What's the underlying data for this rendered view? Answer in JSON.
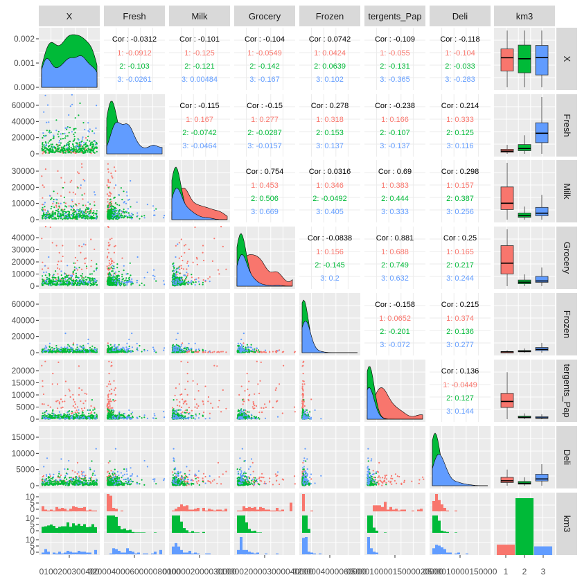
{
  "chart_data": {
    "type": "scatterplot-matrix",
    "variables": [
      "X",
      "Fresh",
      "Milk",
      "Grocery",
      "Frozen",
      "Detergents_Paper",
      "Deli",
      "km3"
    ],
    "strip_labels": [
      "X",
      "Fresh",
      "Milk",
      "Grocery",
      "Frozen",
      "tergents_Pap",
      "Deli",
      "km3"
    ],
    "groups": [
      "1",
      "2",
      "3"
    ],
    "group_colors": {
      "1": "#F8766D",
      "2": "#00BA38",
      "3": "#619CFF"
    },
    "ranges": [
      [
        1,
        440
      ],
      [
        0,
        112151
      ],
      [
        0,
        73498
      ],
      [
        0,
        92780
      ],
      [
        0,
        60869
      ],
      [
        0,
        40827
      ],
      [
        0,
        47943
      ]
    ],
    "left_axis_ticks": [
      [
        "0.000",
        "0.001",
        "0.002"
      ],
      [
        "0",
        "20000",
        "40000",
        "60000"
      ],
      [
        "0",
        "10000",
        "20000",
        "30000"
      ],
      [
        "0",
        "10000",
        "20000",
        "30000",
        "40000"
      ],
      [
        "0",
        "20000",
        "40000",
        "60000"
      ],
      [
        "0",
        "5000",
        "10000",
        "15000",
        "20000"
      ],
      [
        "0",
        "5000",
        "10000",
        "15000"
      ],
      [
        "0",
        "5",
        "10",
        "0",
        "5",
        "10",
        "0",
        "5",
        "10"
      ]
    ],
    "bottom_axis_ticks": [
      "0100200300400",
      "02000400060000080000",
      "0100002000030000",
      "010000200003000040000",
      "0200004000060000",
      "050001000015000020000",
      "0500010000150000",
      "1",
      "2",
      "3"
    ],
    "correlations": [
      {
        "row": 0,
        "col": 1,
        "total": "Cor : -0.0312",
        "g": [
          "1: -0.0912",
          "2: -0.103",
          "3: -0.0261"
        ]
      },
      {
        "row": 0,
        "col": 2,
        "total": "Cor : -0.101",
        "g": [
          "1: -0.125",
          "2: -0.121",
          "3: 0.00484"
        ]
      },
      {
        "row": 0,
        "col": 3,
        "total": "Cor : -0.104",
        "g": [
          "1: -0.0549",
          "2: -0.142",
          "3: -0.167"
        ]
      },
      {
        "row": 0,
        "col": 4,
        "total": "Cor : 0.0742",
        "g": [
          "1: 0.0424",
          "2: 0.0639",
          "3: 0.102"
        ]
      },
      {
        "row": 0,
        "col": 5,
        "total": "Cor : -0.109",
        "g": [
          "1: -0.055",
          "2: -0.131",
          "3: -0.365"
        ]
      },
      {
        "row": 0,
        "col": 6,
        "total": "Cor : -0.118",
        "g": [
          "1: -0.104",
          "2: -0.033",
          "3: -0.283"
        ]
      },
      {
        "row": 1,
        "col": 2,
        "total": "Cor : -0.115",
        "g": [
          "1: 0.167",
          "2: -0.0742",
          "3: -0.0464"
        ]
      },
      {
        "row": 1,
        "col": 3,
        "total": "Cor : -0.15",
        "g": [
          "1: 0.277",
          "2: -0.0287",
          "3: -0.0157"
        ]
      },
      {
        "row": 1,
        "col": 4,
        "total": "Cor : 0.278",
        "g": [
          "1: 0.318",
          "2: 0.153",
          "3: 0.137"
        ]
      },
      {
        "row": 1,
        "col": 5,
        "total": "Cor : -0.238",
        "g": [
          "1: 0.166",
          "2: -0.107",
          "3: -0.137"
        ]
      },
      {
        "row": 1,
        "col": 6,
        "total": "Cor : 0.214",
        "g": [
          "1: 0.333",
          "2: 0.125",
          "3: 0.116"
        ]
      },
      {
        "row": 2,
        "col": 3,
        "total": "Cor : 0.754",
        "g": [
          "1: 0.453",
          "2: 0.506",
          "3: 0.669"
        ]
      },
      {
        "row": 2,
        "col": 4,
        "total": "Cor : 0.0316",
        "g": [
          "1: 0.346",
          "2: -0.0492",
          "3: 0.405"
        ]
      },
      {
        "row": 2,
        "col": 5,
        "total": "Cor : 0.69",
        "g": [
          "1: 0.383",
          "2: 0.444",
          "3: 0.333"
        ]
      },
      {
        "row": 2,
        "col": 6,
        "total": "Cor : 0.298",
        "g": [
          "1: 0.157",
          "2: 0.387",
          "3: 0.256"
        ]
      },
      {
        "row": 3,
        "col": 4,
        "total": "Cor : -0.0838",
        "g": [
          "1: 0.156",
          "2: -0.145",
          "3: 0.2"
        ]
      },
      {
        "row": 3,
        "col": 5,
        "total": "Cor : 0.881",
        "g": [
          "1: 0.688",
          "2: 0.749",
          "3: 0.632"
        ]
      },
      {
        "row": 3,
        "col": 6,
        "total": "Cor : 0.25",
        "g": [
          "1: 0.165",
          "2: 0.217",
          "3: 0.244"
        ]
      },
      {
        "row": 4,
        "col": 5,
        "total": "Cor : -0.158",
        "g": [
          "1: 0.0652",
          "2: -0.201",
          "3: -0.072"
        ]
      },
      {
        "row": 4,
        "col": 6,
        "total": "Cor : 0.215",
        "g": [
          "1: 0.374",
          "2: 0.136",
          "3: 0.277"
        ]
      },
      {
        "row": 5,
        "col": 6,
        "total": "Cor : 0.136",
        "g": [
          "1: -0.0449",
          "2: 0.127",
          "3: 0.144"
        ]
      }
    ],
    "cluster_medians": {
      "1": [
        220,
        3500,
        10600,
        16800,
        1100,
        7300,
        1400
      ],
      "2": [
        220,
        7000,
        2200,
        2800,
        1500,
        700,
        700
      ],
      "3": [
        220,
        27000,
        3600,
        4200,
        3500,
        600,
        1700
      ]
    },
    "cluster_counts": {
      "1": 60,
      "2": 330,
      "3": 50
    },
    "bar_counts_axis_max": 330,
    "grid": true,
    "legend": "none"
  }
}
